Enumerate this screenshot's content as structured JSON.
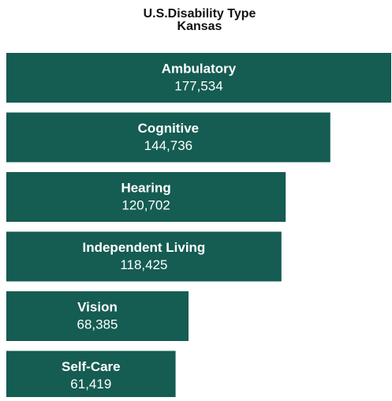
{
  "chart_data": {
    "type": "bar",
    "orientation": "horizontal",
    "title": "U.S.Disability Type",
    "subtitle": "Kansas",
    "categories": [
      "Ambulatory",
      "Cognitive",
      "Hearing",
      "Independent Living",
      "Vision",
      "Self-Care"
    ],
    "values": [
      177534,
      144736,
      120702,
      118425,
      68385,
      61419
    ],
    "value_labels": [
      "177,534",
      "144,736",
      "120,702",
      "118,425",
      "68,385",
      "61,419"
    ],
    "color": "#155c52"
  }
}
